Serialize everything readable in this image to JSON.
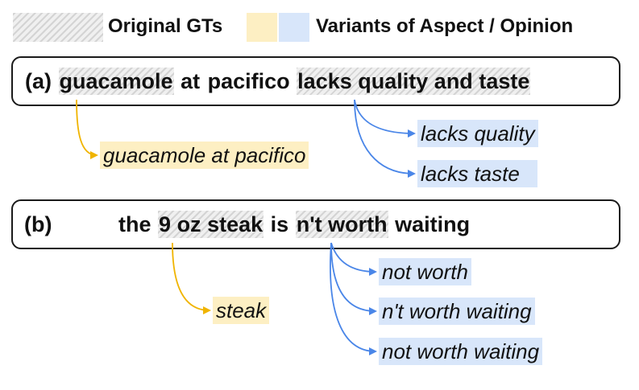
{
  "legend": {
    "original_label": "Original GTs",
    "variants_label": "Variants of Aspect / Opinion"
  },
  "colors": {
    "aspect": "#fdefc3",
    "opinion": "#d8e6fa",
    "aspect_arrow": "#f0b400",
    "opinion_arrow": "#4a86e8"
  },
  "example_a": {
    "label": "(a)",
    "tokens": [
      "guacamole",
      "at",
      "pacifico",
      "lacks",
      "quality",
      "and",
      "taste"
    ],
    "aspect_variants": [
      "guacamole at pacifico"
    ],
    "opinion_variants": [
      "lacks quality",
      "lacks taste"
    ]
  },
  "example_b": {
    "label": "(b)",
    "tokens": [
      "the",
      "9",
      "oz",
      "steak",
      "is",
      "n't",
      "worth",
      "waiting"
    ],
    "aspect_variants": [
      "steak"
    ],
    "opinion_variants": [
      "not worth",
      "n't worth waiting",
      "not worth waiting"
    ]
  }
}
